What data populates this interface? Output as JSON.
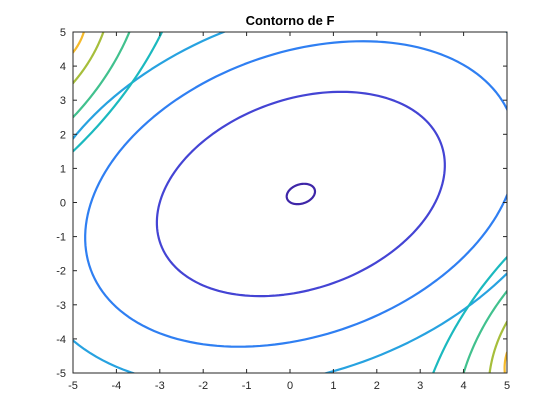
{
  "chart_data": {
    "type": "contour",
    "title": "Contorno de F",
    "xlabel": "",
    "ylabel": "",
    "xlim": [
      -5,
      5
    ],
    "ylim": [
      -5,
      5
    ],
    "xticks": [
      -5,
      -4,
      -3,
      -2,
      -1,
      0,
      1,
      2,
      3,
      4,
      5
    ],
    "yticks": [
      -5,
      -4,
      -3,
      -2,
      -1,
      0,
      1,
      2,
      3,
      4,
      5
    ],
    "grid": false,
    "legend": "none",
    "colormap": "parula",
    "levels": [
      {
        "color": "#3e26a8",
        "kind": "ellipse",
        "cx": 0.25,
        "cy": 0.25,
        "rx": 0.35,
        "ry": 0.27,
        "angle": 35
      },
      {
        "color": "#4444d4",
        "kind": "ellipse",
        "cx": 0.25,
        "cy": 0.25,
        "rx": 3.6,
        "ry": 2.65,
        "angle": 35
      },
      {
        "color": "#2f7ff2",
        "kind": "ellipse",
        "cx": 0.25,
        "cy": 0.25,
        "rx": 5.4,
        "ry": 3.95,
        "angle": 35
      },
      {
        "color": "#27a2e0",
        "kind": "ellipse",
        "cx": 0.25,
        "cy": 0.25,
        "rx": 6.8,
        "ry": 5.0,
        "angle": 35
      },
      {
        "color": "#1bb9bf",
        "kind": "diagonal",
        "c": 7.4,
        "top": [
          [
            -5,
            1.5
          ],
          [
            -2.95,
            5
          ]
        ],
        "bottom": [
          [
            3.3,
            -5
          ],
          [
            5,
            -1.6
          ]
        ]
      },
      {
        "color": "#41c18e",
        "kind": "diagonal",
        "c": 8.3,
        "top": [
          [
            -5,
            2.5
          ],
          [
            -3.7,
            5
          ]
        ],
        "bottom": [
          [
            4.0,
            -5
          ],
          [
            5,
            -2.6
          ]
        ]
      },
      {
        "color": "#a6be3b",
        "kind": "diagonal",
        "c": 9.2,
        "top": [
          [
            -5,
            3.5
          ],
          [
            -4.3,
            5
          ]
        ],
        "bottom": [
          [
            4.6,
            -5
          ],
          [
            5,
            -3.5
          ]
        ]
      },
      {
        "color": "#f5ba2b",
        "kind": "diagonal",
        "c": 10.0,
        "top": [
          [
            -5,
            4.4
          ],
          [
            -4.75,
            5
          ]
        ],
        "bottom": [
          [
            4.95,
            -5
          ],
          [
            5,
            -4.4
          ]
        ]
      }
    ]
  }
}
